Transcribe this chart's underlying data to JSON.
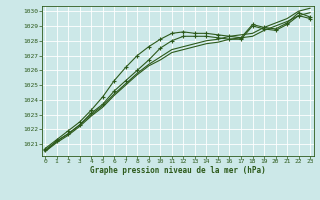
{
  "title": "Graphe pression niveau de la mer (hPa)",
  "bg_color": "#cce8e8",
  "grid_color": "#ffffff",
  "line_color": "#2d5a1b",
  "xlim": [
    -0.3,
    23.3
  ],
  "ylim": [
    1020.2,
    1030.35
  ],
  "yticks": [
    1021,
    1022,
    1023,
    1024,
    1025,
    1026,
    1027,
    1028,
    1029,
    1030
  ],
  "xticks": [
    0,
    1,
    2,
    3,
    4,
    5,
    6,
    7,
    8,
    9,
    10,
    11,
    12,
    13,
    14,
    15,
    16,
    17,
    18,
    19,
    20,
    21,
    22,
    23
  ],
  "series": [
    {
      "y": [
        1020.5,
        1021.1,
        1021.6,
        1022.2,
        1022.9,
        1023.5,
        1024.3,
        1025.0,
        1025.7,
        1026.3,
        1026.7,
        1027.2,
        1027.4,
        1027.6,
        1027.8,
        1027.9,
        1028.1,
        1028.2,
        1028.3,
        1028.7,
        1029.0,
        1029.3,
        1029.7,
        1029.9
      ],
      "marker": false
    },
    {
      "y": [
        1020.5,
        1021.2,
        1021.7,
        1022.3,
        1023.0,
        1023.6,
        1024.4,
        1025.1,
        1025.8,
        1026.4,
        1026.9,
        1027.4,
        1027.6,
        1027.8,
        1028.0,
        1028.1,
        1028.3,
        1028.4,
        1028.5,
        1028.9,
        1029.2,
        1029.5,
        1030.0,
        1030.2
      ],
      "marker": false
    },
    {
      "y": [
        1020.6,
        1021.2,
        1021.7,
        1022.3,
        1023.1,
        1023.7,
        1024.6,
        1025.3,
        1026.0,
        1026.7,
        1027.5,
        1028.0,
        1028.3,
        1028.3,
        1028.3,
        1028.2,
        1028.1,
        1028.1,
        1029.0,
        1028.8,
        1028.7,
        1029.1,
        1029.7,
        1029.5
      ],
      "marker": true
    },
    {
      "y": [
        1020.7,
        1021.3,
        1021.9,
        1022.5,
        1023.3,
        1024.2,
        1025.3,
        1026.2,
        1027.0,
        1027.6,
        1028.1,
        1028.5,
        1028.6,
        1028.5,
        1028.5,
        1028.4,
        1028.3,
        1028.2,
        1029.1,
        1028.9,
        1028.8,
        1029.2,
        1029.9,
        1029.6
      ],
      "marker": true
    }
  ],
  "marker_style": "+",
  "marker_size": 3.0,
  "linewidth": 0.8
}
